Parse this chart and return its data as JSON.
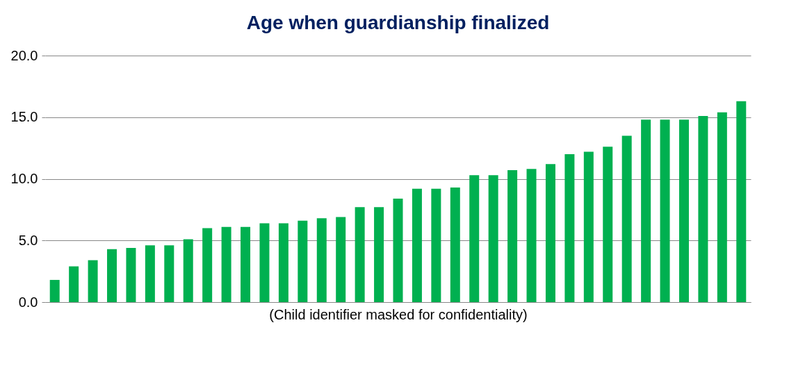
{
  "chart_data": {
    "type": "bar",
    "title": "Age when guardianship finalized",
    "xlabel": "(Child identifier masked for confidentiality)",
    "categories": [
      null,
      null,
      null,
      null,
      null,
      null,
      null,
      null,
      null,
      null,
      null,
      null,
      null,
      null,
      null,
      null,
      null,
      null,
      null,
      null,
      null,
      null,
      null,
      null,
      null,
      null,
      null,
      null,
      null,
      null,
      null,
      null,
      null,
      null,
      null,
      null,
      null
    ],
    "values": [
      1.8,
      2.9,
      3.4,
      4.3,
      4.4,
      4.6,
      4.6,
      5.1,
      6.0,
      6.1,
      6.1,
      6.4,
      6.4,
      6.6,
      6.8,
      6.9,
      7.7,
      7.7,
      8.4,
      9.2,
      9.2,
      9.3,
      10.3,
      10.3,
      10.7,
      10.8,
      11.2,
      12.0,
      12.2,
      12.6,
      13.5,
      14.8,
      14.8,
      14.8,
      15.1,
      15.4,
      16.3
    ],
    "color": "#00b050",
    "ylim": [
      0,
      20
    ],
    "yticks": [
      {
        "value": 0,
        "label": "0.0"
      },
      {
        "value": 5,
        "label": "5.0"
      },
      {
        "value": 10,
        "label": "10.0"
      },
      {
        "value": 15,
        "label": "15.0"
      },
      {
        "value": 20,
        "label": "20.0"
      }
    ],
    "grid": "y",
    "tick_labels": "y"
  }
}
